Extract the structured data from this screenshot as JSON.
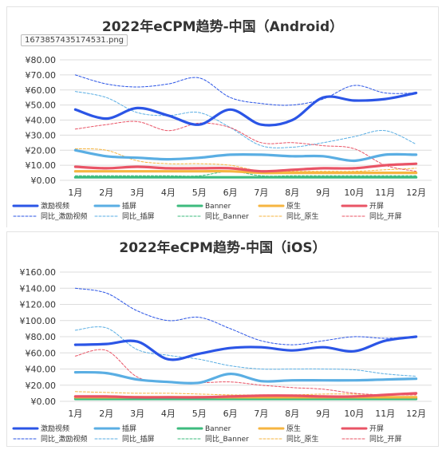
{
  "image_name": "1673857435174531.png",
  "colors": {
    "incentive": "#2b55e6",
    "interstitial": "#5aaee3",
    "banner": "#3dbb7e",
    "native": "#f6b540",
    "splash": "#e95466"
  },
  "chart_data": [
    {
      "type": "line",
      "title": "2022年eCPM趋势-中国（Android）",
      "categories": [
        "1月",
        "2月",
        "3月",
        "4月",
        "5月",
        "6月",
        "7月",
        "8月",
        "9月",
        "10月",
        "11月",
        "12月"
      ],
      "ylim": [
        0,
        80
      ],
      "ytick_step": 10,
      "ytick_labels": [
        "¥0.00",
        "¥10.00",
        "¥20.00",
        "¥30.00",
        "¥40.00",
        "¥50.00",
        "¥60.00",
        "¥70.00",
        "¥80.00"
      ],
      "grid": true,
      "legend_position": "bottom",
      "series": [
        {
          "name": "激励视频",
          "color_key": "incentive",
          "style": "solid",
          "values": [
            47,
            41,
            48,
            43,
            37,
            47,
            37,
            40,
            55,
            53,
            54,
            58
          ]
        },
        {
          "name": "插屏",
          "color_key": "interstitial",
          "style": "solid",
          "values": [
            20,
            16,
            15,
            14,
            15,
            17,
            17,
            16,
            16,
            13,
            17,
            17
          ]
        },
        {
          "name": "Banner",
          "color_key": "banner",
          "style": "solid",
          "values": [
            2,
            2,
            2,
            2,
            2,
            2,
            2,
            2,
            2,
            2,
            2,
            2
          ]
        },
        {
          "name": "原生",
          "color_key": "native",
          "style": "solid",
          "values": [
            6,
            6,
            6,
            6,
            6,
            6,
            5,
            5,
            5,
            5,
            5,
            5
          ]
        },
        {
          "name": "开屏",
          "color_key": "splash",
          "style": "solid",
          "values": [
            9,
            8,
            9,
            8,
            8,
            8,
            6,
            7,
            8,
            8,
            10,
            11
          ]
        },
        {
          "name": "同比_激励视频",
          "color_key": "incentive",
          "style": "dashed",
          "values": [
            70,
            64,
            62,
            64,
            68,
            55,
            51,
            50,
            54,
            63,
            58,
            58
          ]
        },
        {
          "name": "同比_插屏",
          "color_key": "interstitial",
          "style": "dashed",
          "values": [
            59,
            55,
            45,
            43,
            45,
            35,
            23,
            22,
            25,
            29,
            33,
            24
          ]
        },
        {
          "name": "同比_Banner",
          "color_key": "banner",
          "style": "dashed",
          "values": [
            3,
            3,
            3,
            3,
            3,
            6,
            3,
            3,
            3,
            3,
            3,
            3
          ]
        },
        {
          "name": "同比_原生",
          "color_key": "native",
          "style": "dashed",
          "values": [
            21,
            20,
            13,
            11,
            11,
            10,
            6,
            6,
            6,
            6,
            7,
            8
          ]
        },
        {
          "name": "同比_开屏",
          "color_key": "splash",
          "style": "dashed",
          "values": [
            34,
            37,
            39,
            33,
            38,
            35,
            25,
            25,
            23,
            21,
            10,
            6
          ]
        }
      ]
    },
    {
      "type": "line",
      "title": "2022年eCPM趋势-中国（iOS）",
      "categories": [
        "1月",
        "2月",
        "3月",
        "4月",
        "5月",
        "6月",
        "7月",
        "8月",
        "9月",
        "10月",
        "11月",
        "12月"
      ],
      "ylim": [
        0,
        160
      ],
      "ytick_step": 20,
      "ytick_labels": [
        "¥0.00",
        "¥20.00",
        "¥40.00",
        "¥60.00",
        "¥80.00",
        "¥100.00",
        "¥120.00",
        "¥140.00",
        "¥160.00"
      ],
      "grid": true,
      "legend_position": "bottom",
      "series": [
        {
          "name": "激励视频",
          "color_key": "incentive",
          "style": "solid",
          "values": [
            70,
            71,
            74,
            52,
            59,
            66,
            67,
            63,
            67,
            62,
            75,
            80
          ]
        },
        {
          "name": "插屏",
          "color_key": "interstitial",
          "style": "solid",
          "values": [
            36,
            35,
            27,
            24,
            23,
            34,
            25,
            26,
            26,
            26,
            27,
            28
          ]
        },
        {
          "name": "Banner",
          "color_key": "banner",
          "style": "solid",
          "values": [
            3,
            3,
            3,
            3,
            3,
            3,
            3,
            3,
            3,
            3,
            3,
            3
          ]
        },
        {
          "name": "原生",
          "color_key": "native",
          "style": "solid",
          "values": [
            5,
            5,
            5,
            5,
            5,
            5,
            5,
            5,
            5,
            5,
            5,
            5
          ]
        },
        {
          "name": "开屏",
          "color_key": "splash",
          "style": "solid",
          "values": [
            6,
            6,
            5,
            5,
            5,
            6,
            7,
            7,
            6,
            6,
            8,
            10
          ]
        },
        {
          "name": "同比_激励视频",
          "color_key": "incentive",
          "style": "dashed",
          "values": [
            140,
            134,
            112,
            100,
            104,
            90,
            75,
            70,
            75,
            80,
            78,
            80
          ]
        },
        {
          "name": "同比_插屏",
          "color_key": "interstitial",
          "style": "dashed",
          "values": [
            88,
            91,
            64,
            57,
            52,
            44,
            40,
            40,
            40,
            39,
            34,
            31
          ]
        },
        {
          "name": "同比_Banner",
          "color_key": "banner",
          "style": "dashed",
          "values": [
            2,
            2,
            2,
            2,
            2,
            2,
            2,
            2,
            2,
            2,
            2,
            2
          ]
        },
        {
          "name": "同比_原生",
          "color_key": "native",
          "style": "dashed",
          "values": [
            12,
            11,
            10,
            10,
            9,
            8,
            8,
            8,
            9,
            9,
            8,
            8
          ]
        },
        {
          "name": "同比_开屏",
          "color_key": "splash",
          "style": "dashed",
          "values": [
            56,
            63,
            30,
            24,
            23,
            24,
            20,
            17,
            15,
            10,
            8,
            8
          ]
        }
      ]
    }
  ]
}
